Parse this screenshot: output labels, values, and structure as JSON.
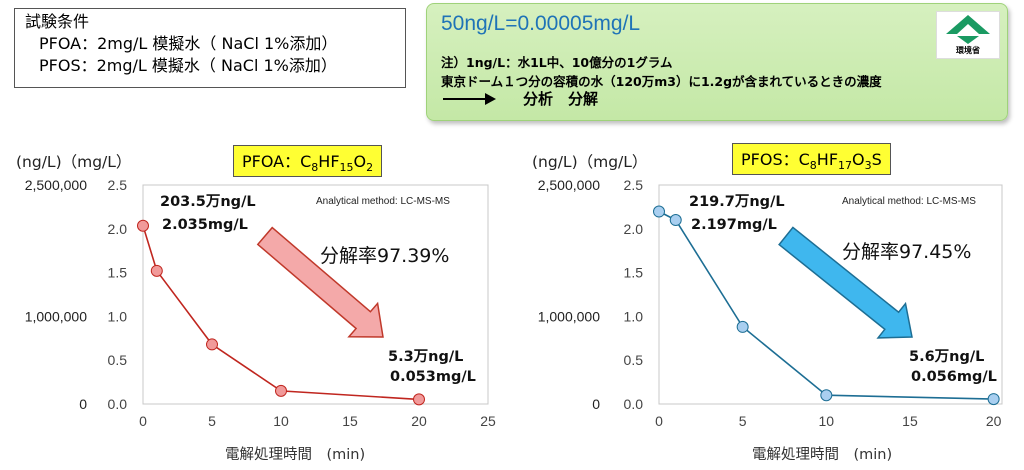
{
  "conditions": {
    "title": "試験条件",
    "line1": "PFOA：2mg/L 模擬水（ NaCl 1%添加）",
    "line2": "PFOS：2mg/L 模擬水（ NaCl 1%添加）"
  },
  "info": {
    "title": "50ng/L=0.00005mg/L",
    "note1": "注）1ng/L：水1L中、10億分の1グラム",
    "note2": "東京ドーム１つ分の容積の水（120万m3）に1.2gが含まれているときの濃度",
    "process": "分析　分解",
    "logo_text": "環境省",
    "arrow_icon": "right-arrow"
  },
  "colors": {
    "pfoa_line": "#c0261f",
    "pfoa_marker": "#f19a9a",
    "pfos_line": "#1d6e94",
    "pfos_marker": "#a9cff0",
    "pfoa_arrow": "#f4a9a9",
    "pfos_arrow": "#3fb7ee",
    "tag_bg": "#ffff33",
    "info_title": "#1f73b7"
  },
  "chart_data": [
    {
      "type": "line",
      "tag_main": "PFOA：C",
      "tag_sub1": "8",
      "tag_mid1": "HF",
      "tag_sub2": "15",
      "tag_mid2": "O",
      "tag_sub3": "2",
      "tag_end": "",
      "unit_label": "(ng/L)（mg/L）",
      "xlabel": "電解処理時間　(min)",
      "method": "Analytical method: LC-MS-MS",
      "x": [
        0,
        1,
        5,
        10,
        20
      ],
      "y": [
        2.035,
        1.52,
        0.68,
        0.15,
        0.053
      ],
      "xlim": [
        0,
        25
      ],
      "ylim": [
        0,
        2.5
      ],
      "xticks": [
        "0",
        "5",
        "10",
        "15",
        "20",
        "25"
      ],
      "yticks": [
        "0.0",
        "0.5",
        "1.0",
        "1.5",
        "2.0",
        "2.5"
      ],
      "y2ticks": [
        {
          "value": 0,
          "label": "0"
        },
        {
          "value": 1.0,
          "label": "1,000,000"
        },
        {
          "value": 2.5,
          "label": "2,500,000"
        }
      ],
      "start_label_ng": "203.5万ng/L",
      "start_label_mg": "2.035mg/L",
      "end_label_ng": "5.3万ng/L",
      "end_label_mg": "0.053mg/L",
      "rate_label": "分解率97.39%"
    },
    {
      "type": "line",
      "tag_main": "PFOS：C",
      "tag_sub1": "8",
      "tag_mid1": "HF",
      "tag_sub2": "17",
      "tag_mid2": "O",
      "tag_sub3": "3",
      "tag_end": "S",
      "unit_label": "(ng/L)（mg/L）",
      "xlabel": "電解処理時間　(min)",
      "method": "Analytical method: LC-MS-MS",
      "x": [
        0,
        1,
        5,
        10,
        20
      ],
      "y": [
        2.197,
        2.1,
        0.88,
        0.1,
        0.056
      ],
      "xlim": [
        0,
        20.5
      ],
      "ylim": [
        0,
        2.5
      ],
      "xticks": [
        "0",
        "5",
        "10",
        "15",
        "20"
      ],
      "yticks": [
        "0.0",
        "0.5",
        "1.0",
        "1.5",
        "2.0",
        "2.5"
      ],
      "y2ticks": [
        {
          "value": 0,
          "label": "0"
        },
        {
          "value": 1.0,
          "label": "1,000,000"
        },
        {
          "value": 2.5,
          "label": "2,500,000"
        }
      ],
      "start_label_ng": "219.7万ng/L",
      "start_label_mg": "2.197mg/L",
      "end_label_ng": "5.6万ng/L",
      "end_label_mg": "0.056mg/L",
      "rate_label": "分解率97.45%"
    }
  ]
}
